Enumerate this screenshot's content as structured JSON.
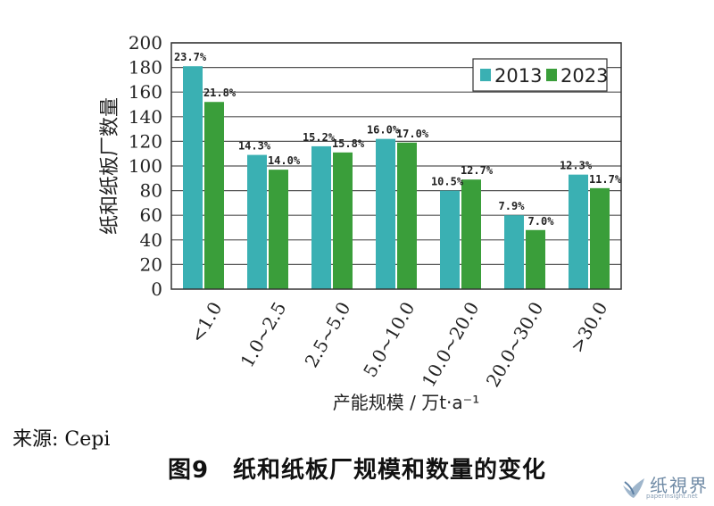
{
  "chart_data": {
    "type": "bar",
    "categories": [
      "<1.0",
      "1.0~2.5",
      "2.5~5.0",
      "5.0~10.0",
      "10.0~20.0",
      "20.0~30.0",
      ">30.0"
    ],
    "series": [
      {
        "name": "2013",
        "color": "#3ab0b3",
        "values": [
          181,
          109,
          116,
          122,
          80,
          60,
          93
        ],
        "labels": [
          "23.7%",
          "14.3%",
          "15.2%",
          "16.0%",
          "10.5%",
          "7.9%",
          "12.3%"
        ]
      },
      {
        "name": "2023",
        "color": "#3a9e3a",
        "values": [
          152,
          97,
          111,
          119,
          89,
          48,
          82
        ],
        "labels": [
          "21.8%",
          "14.0%",
          "15.8%",
          "17.0%",
          "12.7%",
          "7.0%",
          "11.7%"
        ]
      }
    ],
    "ylim": [
      0,
      200
    ],
    "yticks": [
      0,
      20,
      40,
      60,
      80,
      100,
      120,
      140,
      160,
      180,
      200
    ],
    "ylabel": "纸和纸板厂数量",
    "xlabel": "产能规模 / 万t·a⁻¹",
    "grid": "horizontal",
    "legend_position": "top-right"
  },
  "source_text": "来源: Cepi",
  "caption": "图9　纸和纸板厂规模和数量的变化",
  "watermark": {
    "name": "纸視界",
    "url": "paperinsight.net"
  }
}
